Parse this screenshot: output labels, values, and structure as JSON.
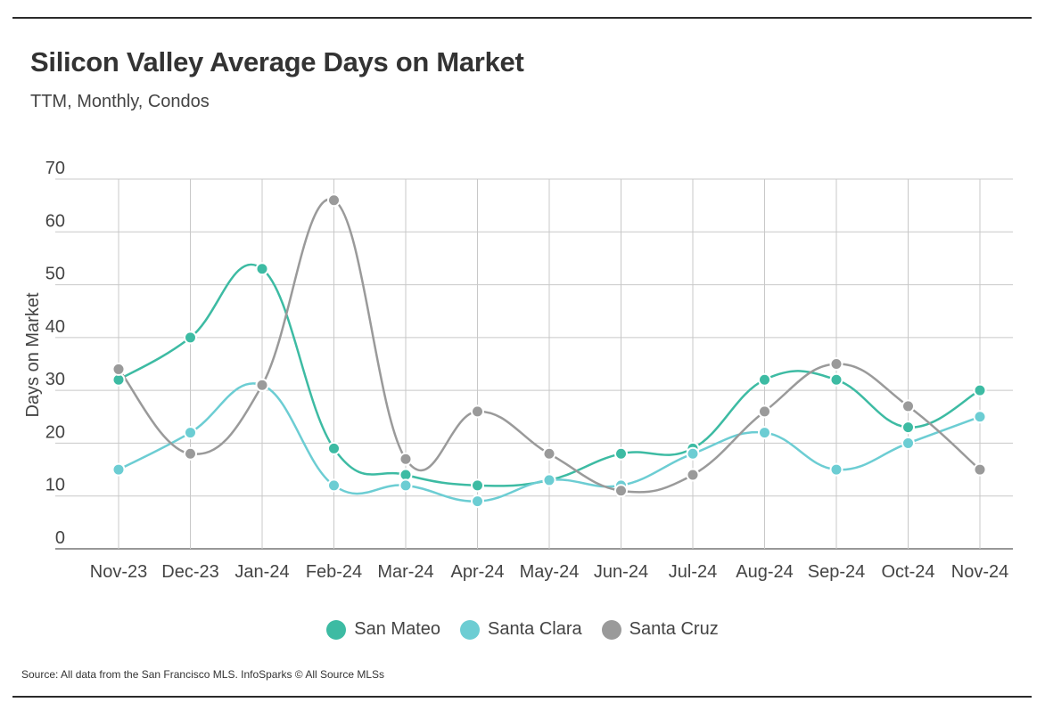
{
  "title": "Silicon Valley Average Days on Market",
  "subtitle": "TTM, Monthly, Condos",
  "source": "Source:  All data from the San Francisco MLS. InfoSparks © All Source MLSs",
  "chart_data": {
    "type": "line",
    "x": [
      "Nov-23",
      "Dec-23",
      "Jan-24",
      "Feb-24",
      "Mar-24",
      "Apr-24",
      "May-24",
      "Jun-24",
      "Jul-24",
      "Aug-24",
      "Sep-24",
      "Oct-24",
      "Nov-24"
    ],
    "ylabel": "Days on Market",
    "ylim": [
      0,
      70
    ],
    "yticks": [
      0,
      10,
      20,
      30,
      40,
      50,
      60,
      70
    ],
    "grid": true,
    "legend_position": "bottom",
    "series": [
      {
        "name": "San Mateo",
        "color": "#3dbba3",
        "values": [
          32,
          40,
          53,
          19,
          14,
          12,
          13,
          18,
          19,
          32,
          32,
          23,
          30
        ]
      },
      {
        "name": "Santa Clara",
        "color": "#6ccdd3",
        "values": [
          15,
          22,
          31,
          12,
          12,
          9,
          13,
          12,
          18,
          22,
          15,
          20,
          25
        ]
      },
      {
        "name": "Santa Cruz",
        "color": "#9a9a9a",
        "values": [
          34,
          18,
          31,
          66,
          17,
          26,
          18,
          11,
          14,
          26,
          35,
          27,
          15
        ]
      }
    ]
  }
}
